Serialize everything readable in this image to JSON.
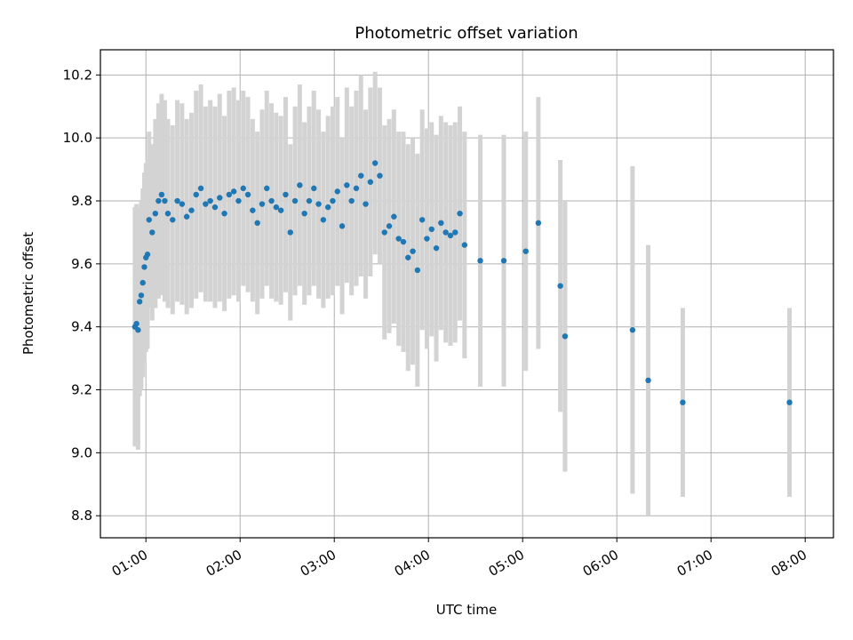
{
  "chart_data": {
    "type": "scatter",
    "title": "Photometric offset variation",
    "xlabel": "UTC time",
    "ylabel": "Photometric offset",
    "x_ticks": [
      "01:00",
      "02:00",
      "03:00",
      "04:00",
      "05:00",
      "06:00",
      "07:00",
      "08:00"
    ],
    "y_ticks": [
      "8.8",
      "9.0",
      "9.2",
      "9.4",
      "9.6",
      "9.8",
      "10.0",
      "10.2"
    ],
    "xlim": [
      "00:31",
      "08:18"
    ],
    "ylim": [
      8.73,
      10.28
    ],
    "grid": true,
    "colors": {
      "points": "#1f77b4",
      "errorbars": "#d3d3d3",
      "grid": "#b0b0b0"
    },
    "series": [
      {
        "x": [
          "00:53",
          "00:54",
          "00:55",
          "00:56",
          "00:57",
          "00:58",
          "00:59",
          "01:00",
          "01:01",
          "01:02",
          "01:04",
          "01:06",
          "01:08",
          "01:10",
          "01:12",
          "01:14",
          "01:17",
          "01:20",
          "01:23",
          "01:26",
          "01:29",
          "01:32",
          "01:35",
          "01:38",
          "01:41",
          "01:44",
          "01:47",
          "01:50",
          "01:53",
          "01:56",
          "01:59",
          "02:02",
          "02:05",
          "02:08",
          "02:11",
          "02:14",
          "02:17",
          "02:20",
          "02:23",
          "02:26",
          "02:29",
          "02:32",
          "02:35",
          "02:38",
          "02:41",
          "02:44",
          "02:47",
          "02:50",
          "02:53",
          "02:56",
          "02:59",
          "03:02",
          "03:05",
          "03:08",
          "03:11",
          "03:14",
          "03:17",
          "03:20",
          "03:23",
          "03:26",
          "03:29",
          "03:32",
          "03:35",
          "03:38",
          "03:41",
          "03:44",
          "03:47",
          "03:50",
          "03:53",
          "03:56",
          "03:59",
          "04:02",
          "04:05",
          "04:08",
          "04:11",
          "04:14",
          "04:17",
          "04:20",
          "04:23",
          "04:33",
          "04:48",
          "05:02",
          "05:10",
          "05:24",
          "05:27",
          "06:10",
          "06:20",
          "06:42",
          "07:50"
        ],
        "y": [
          9.4,
          9.41,
          9.39,
          9.48,
          9.5,
          9.54,
          9.59,
          9.62,
          9.63,
          9.74,
          9.7,
          9.76,
          9.8,
          9.82,
          9.8,
          9.76,
          9.74,
          9.8,
          9.79,
          9.75,
          9.77,
          9.82,
          9.84,
          9.79,
          9.8,
          9.78,
          9.81,
          9.76,
          9.82,
          9.83,
          9.8,
          9.84,
          9.82,
          9.77,
          9.73,
          9.79,
          9.84,
          9.8,
          9.78,
          9.77,
          9.82,
          9.7,
          9.8,
          9.85,
          9.76,
          9.8,
          9.84,
          9.79,
          9.74,
          9.78,
          9.8,
          9.83,
          9.72,
          9.85,
          9.8,
          9.84,
          9.88,
          9.79,
          9.86,
          9.92,
          9.88,
          9.7,
          9.72,
          9.75,
          9.68,
          9.67,
          9.62,
          9.64,
          9.58,
          9.74,
          9.68,
          9.71,
          9.65,
          9.73,
          9.7,
          9.69,
          9.7,
          9.76,
          9.66,
          9.61,
          9.61,
          9.64,
          9.73,
          9.53,
          9.37,
          9.39,
          9.23,
          9.16,
          9.16
        ],
        "err": [
          0.38,
          0.38,
          0.38,
          0.3,
          0.3,
          0.3,
          0.3,
          0.3,
          0.3,
          0.28,
          0.28,
          0.3,
          0.31,
          0.32,
          0.32,
          0.3,
          0.3,
          0.32,
          0.32,
          0.31,
          0.31,
          0.33,
          0.33,
          0.31,
          0.32,
          0.32,
          0.33,
          0.31,
          0.33,
          0.33,
          0.32,
          0.31,
          0.31,
          0.29,
          0.29,
          0.3,
          0.31,
          0.31,
          0.3,
          0.3,
          0.31,
          0.28,
          0.3,
          0.32,
          0.29,
          0.3,
          0.31,
          0.3,
          0.28,
          0.29,
          0.3,
          0.3,
          0.28,
          0.31,
          0.3,
          0.31,
          0.32,
          0.3,
          0.3,
          0.29,
          0.28,
          0.34,
          0.34,
          0.34,
          0.34,
          0.35,
          0.36,
          0.36,
          0.37,
          0.35,
          0.35,
          0.34,
          0.36,
          0.34,
          0.35,
          0.35,
          0.35,
          0.34,
          0.36,
          0.4,
          0.4,
          0.38,
          0.4,
          0.4,
          0.43,
          0.52,
          0.43,
          0.3,
          0.3
        ]
      }
    ]
  }
}
